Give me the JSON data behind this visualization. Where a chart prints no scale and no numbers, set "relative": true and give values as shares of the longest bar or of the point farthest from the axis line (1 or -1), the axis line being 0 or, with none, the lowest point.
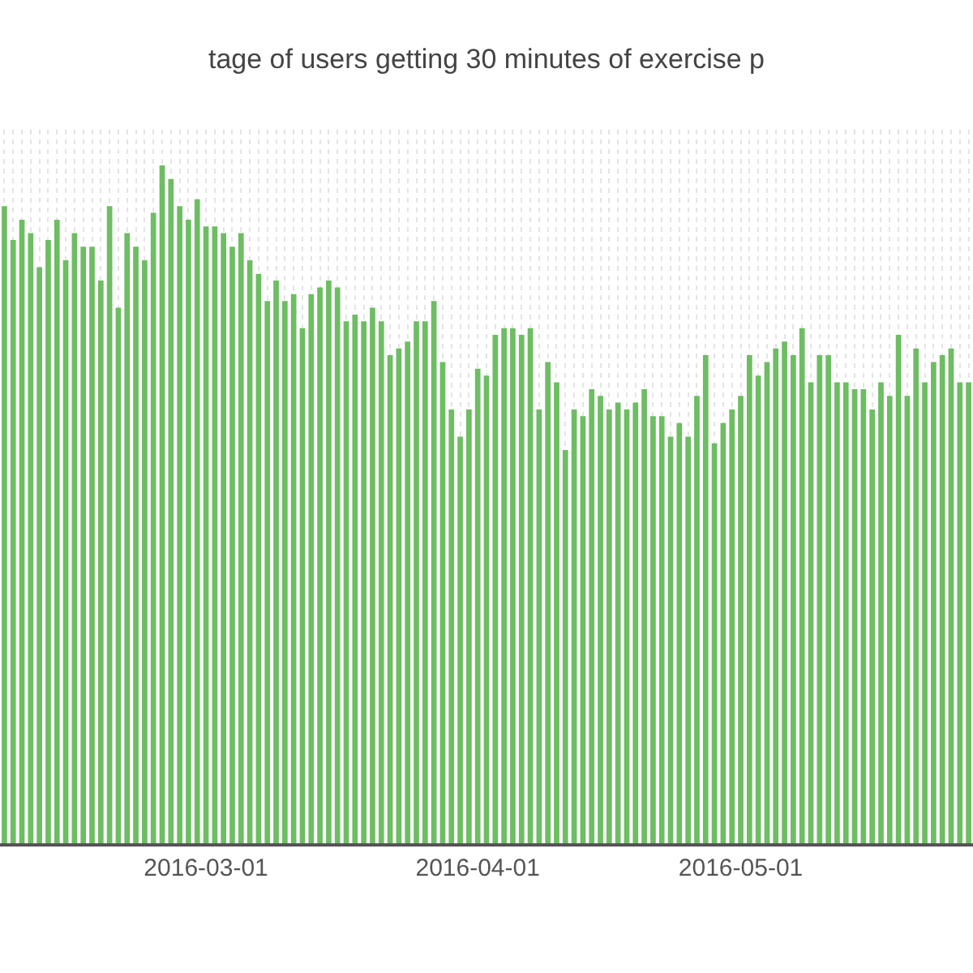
{
  "chart_data": {
    "type": "bar",
    "title": "tage of users getting 30 minutes of exercise p",
    "relative": true,
    "color": "#6dbd62",
    "grid": "x",
    "x": [
      "2016-02-07",
      "2016-02-08",
      "2016-02-09",
      "2016-02-10",
      "2016-02-11",
      "2016-02-12",
      "2016-02-13",
      "2016-02-14",
      "2016-02-15",
      "2016-02-16",
      "2016-02-17",
      "2016-02-18",
      "2016-02-19",
      "2016-02-20",
      "2016-02-21",
      "2016-02-22",
      "2016-02-23",
      "2016-02-24",
      "2016-02-25",
      "2016-02-26",
      "2016-02-27",
      "2016-02-28",
      "2016-02-29",
      "2016-03-01",
      "2016-03-02",
      "2016-03-03",
      "2016-03-04",
      "2016-03-05",
      "2016-03-06",
      "2016-03-07",
      "2016-03-08",
      "2016-03-09",
      "2016-03-10",
      "2016-03-11",
      "2016-03-12",
      "2016-03-13",
      "2016-03-14",
      "2016-03-15",
      "2016-03-16",
      "2016-03-17",
      "2016-03-18",
      "2016-03-19",
      "2016-03-20",
      "2016-03-21",
      "2016-03-22",
      "2016-03-23",
      "2016-03-24",
      "2016-03-25",
      "2016-03-26",
      "2016-03-27",
      "2016-03-28",
      "2016-03-29",
      "2016-03-30",
      "2016-03-31",
      "2016-04-01",
      "2016-04-02",
      "2016-04-03",
      "2016-04-04",
      "2016-04-05",
      "2016-04-06",
      "2016-04-07",
      "2016-04-08",
      "2016-04-09",
      "2016-04-10",
      "2016-04-11",
      "2016-04-12",
      "2016-04-13",
      "2016-04-14",
      "2016-04-15",
      "2016-04-16",
      "2016-04-17",
      "2016-04-18",
      "2016-04-19",
      "2016-04-20",
      "2016-04-21",
      "2016-04-22",
      "2016-04-23",
      "2016-04-24",
      "2016-04-25",
      "2016-04-26",
      "2016-04-27",
      "2016-04-28",
      "2016-04-29",
      "2016-04-30",
      "2016-05-01",
      "2016-05-02",
      "2016-05-03",
      "2016-05-04",
      "2016-05-05",
      "2016-05-06",
      "2016-05-07",
      "2016-05-08",
      "2016-05-09",
      "2016-05-10",
      "2016-05-11",
      "2016-05-12",
      "2016-05-13",
      "2016-05-14",
      "2016-05-15",
      "2016-05-16",
      "2016-05-17",
      "2016-05-18",
      "2016-05-19",
      "2016-05-20",
      "2016-05-21",
      "2016-05-22",
      "2016-05-23",
      "2016-05-24",
      "2016-05-25",
      "2016-05-26",
      "2016-05-27"
    ],
    "xlim": [
      "2016-02-06T12:00",
      "2016-05-27T12:00"
    ],
    "xticks": [
      "2016-03-01",
      "2016-04-01",
      "2016-05-01"
    ],
    "values": [
      0.94,
      0.89,
      0.92,
      0.9,
      0.85,
      0.89,
      0.92,
      0.86,
      0.9,
      0.88,
      0.88,
      0.83,
      0.94,
      0.79,
      0.9,
      0.88,
      0.86,
      0.93,
      1,
      0.98,
      0.94,
      0.92,
      0.95,
      0.91,
      0.91,
      0.9,
      0.88,
      0.9,
      0.86,
      0.84,
      0.8,
      0.83,
      0.8,
      0.81,
      0.76,
      0.81,
      0.82,
      0.83,
      0.82,
      0.77,
      0.78,
      0.77,
      0.79,
      0.77,
      0.72,
      0.73,
      0.74,
      0.77,
      0.77,
      0.8,
      0.71,
      0.64,
      0.6,
      0.64,
      0.7,
      0.69,
      0.75,
      0.76,
      0.76,
      0.75,
      0.76,
      0.64,
      0.71,
      0.68,
      0.58,
      0.64,
      0.63,
      0.67,
      0.66,
      0.64,
      0.65,
      0.64,
      0.65,
      0.67,
      0.63,
      0.63,
      0.6,
      0.62,
      0.6,
      0.66,
      0.72,
      0.59,
      0.62,
      0.64,
      0.66,
      0.72,
      0.69,
      0.71,
      0.73,
      0.74,
      0.72,
      0.76,
      0.68,
      0.72,
      0.72,
      0.68,
      0.68,
      0.67,
      0.67,
      0.64,
      0.68,
      0.66,
      0.75,
      0.66,
      0.73,
      0.68,
      0.71,
      0.72,
      0.73,
      0.68,
      0.68
    ]
  }
}
